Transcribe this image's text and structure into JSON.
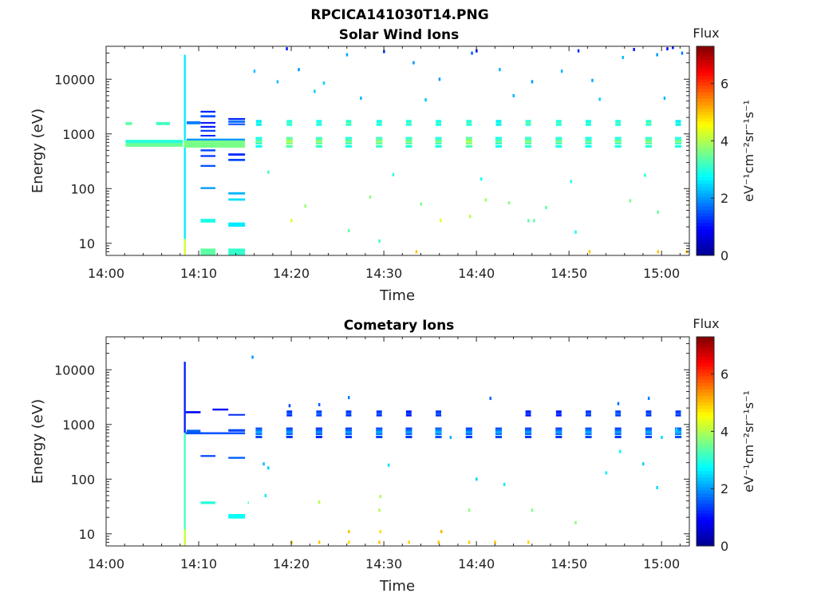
{
  "figure_title": "RPCICA141030T14.PNG",
  "colormap": [
    "#00008f",
    "#0000ff",
    "#0080ff",
    "#00ffff",
    "#80ff80",
    "#ffff00",
    "#ff8000",
    "#ff0000",
    "#800000"
  ],
  "chart_data": [
    {
      "type": "heatmap",
      "title": "Solar Wind Ions",
      "xlabel": "Time",
      "ylabel": "Energy (eV)",
      "xlim_minutes": [
        0,
        63
      ],
      "ylim": [
        6,
        40000
      ],
      "yscale": "log",
      "x_ticks": [
        {
          "m": 0,
          "label": "14:00"
        },
        {
          "m": 10,
          "label": "14:10"
        },
        {
          "m": 20,
          "label": "14:20"
        },
        {
          "m": 30,
          "label": "14:30"
        },
        {
          "m": 40,
          "label": "14:40"
        },
        {
          "m": 50,
          "label": "14:50"
        },
        {
          "m": 60,
          "label": "15:00"
        }
      ],
      "y_ticks": [
        {
          "v": 10,
          "label": "10"
        },
        {
          "v": 100,
          "label": "100"
        },
        {
          "v": 1000,
          "label": "1000"
        },
        {
          "v": 10000,
          "label": "10000"
        }
      ],
      "colorbar": {
        "label": "Flux",
        "unit": "eV⁻¹cm⁻²sr⁻¹s⁻¹",
        "range": [
          0,
          7.3
        ],
        "ticks": [
          "0",
          "2",
          "4",
          "6"
        ]
      },
      "grid": false,
      "cells": [
        [
          2.1,
          2.8,
          1450,
          1650,
          3.4
        ],
        [
          5.4,
          6.9,
          1450,
          1650,
          3.2
        ],
        [
          2.1,
          8.3,
          580,
          680,
          3.5
        ],
        [
          2.1,
          8.3,
          680,
          780,
          3.0
        ],
        [
          8.4,
          8.6,
          7,
          28000,
          2.6
        ],
        [
          8.4,
          8.6,
          6,
          12,
          4.3
        ],
        [
          8.4,
          15.0,
          560,
          760,
          3.6
        ],
        [
          8.7,
          15.0,
          760,
          820,
          2.0
        ],
        [
          10.2,
          11.8,
          2450,
          2650,
          1.2
        ],
        [
          10.2,
          11.8,
          1550,
          1650,
          1.0
        ],
        [
          10.2,
          11.8,
          1300,
          1400,
          1.1
        ],
        [
          10.2,
          11.8,
          1100,
          1180,
          1.3
        ],
        [
          10.2,
          11.8,
          900,
          960,
          1.2
        ],
        [
          10.2,
          11.8,
          480,
          520,
          1.4
        ],
        [
          10.2,
          11.8,
          380,
          410,
          1.3
        ],
        [
          10.2,
          11.8,
          250,
          270,
          1.5
        ],
        [
          10.2,
          11.8,
          98,
          106,
          2.0
        ],
        [
          10.2,
          11.8,
          24,
          28,
          2.9
        ],
        [
          10.2,
          11.8,
          6,
          8,
          3.4
        ],
        [
          10.2,
          11.8,
          2000,
          2200,
          1.5
        ],
        [
          8.7,
          10.2,
          1500,
          1700,
          1.8
        ],
        [
          13.2,
          15.0,
          1800,
          1950,
          1.2
        ],
        [
          13.2,
          15.0,
          1600,
          1750,
          1.7
        ],
        [
          13.2,
          15.0,
          1450,
          1550,
          1.4
        ],
        [
          13.2,
          15.0,
          400,
          440,
          1.2
        ],
        [
          13.2,
          15.0,
          320,
          350,
          1.4
        ],
        [
          13.2,
          15.0,
          78,
          86,
          2.2
        ],
        [
          13.2,
          15.0,
          60,
          66,
          2.5
        ],
        [
          13.2,
          15.0,
          20,
          24,
          2.6
        ],
        [
          13.2,
          15.0,
          6,
          8,
          3.1
        ]
      ],
      "bursts": [
        {
          "t": 16.5,
          "lo_level": 3.5,
          "hi_level": 3.0
        },
        {
          "t": 19.8,
          "lo_level": 4.0,
          "hi_level": 3.3
        },
        {
          "t": 23.0,
          "lo_level": 3.8,
          "hi_level": 3.2
        },
        {
          "t": 26.2,
          "lo_level": 3.6,
          "hi_level": 3.4
        },
        {
          "t": 29.5,
          "lo_level": 3.8,
          "hi_level": 3.2
        },
        {
          "t": 32.7,
          "lo_level": 3.7,
          "hi_level": 3.3
        },
        {
          "t": 35.9,
          "lo_level": 3.6,
          "hi_level": 3.2
        },
        {
          "t": 39.2,
          "lo_level": 4.0,
          "hi_level": 3.3
        },
        {
          "t": 42.4,
          "lo_level": 3.5,
          "hi_level": 3.0
        },
        {
          "t": 45.6,
          "lo_level": 3.7,
          "hi_level": 3.4
        },
        {
          "t": 48.9,
          "lo_level": 3.6,
          "hi_level": 3.3
        },
        {
          "t": 52.1,
          "lo_level": 3.5,
          "hi_level": 3.2
        },
        {
          "t": 55.3,
          "lo_level": 3.6,
          "hi_level": 3.3
        },
        {
          "t": 58.6,
          "lo_level": 3.7,
          "hi_level": 3.4
        },
        {
          "t": 61.8,
          "lo_level": 3.6,
          "hi_level": 3.0
        }
      ],
      "sparse_points": [
        [
          20.0,
          26,
          4.3
        ],
        [
          26.2,
          17,
          3.4
        ],
        [
          29.5,
          11,
          3.2
        ],
        [
          33.5,
          7,
          5.0
        ],
        [
          36.1,
          26,
          4.4
        ],
        [
          39.3,
          31,
          4.0
        ],
        [
          45.6,
          26,
          3.4
        ],
        [
          46.2,
          26,
          3.3
        ],
        [
          50.7,
          16,
          2.8
        ],
        [
          52.2,
          7,
          5.0
        ],
        [
          59.6,
          37,
          3.4
        ],
        [
          59.6,
          7,
          5.0
        ],
        [
          62.7,
          7,
          5.0
        ],
        [
          21.5,
          48,
          3.8
        ],
        [
          28.5,
          70,
          3.7
        ],
        [
          34.0,
          52,
          3.6
        ],
        [
          41.0,
          62,
          3.8
        ],
        [
          43.5,
          55,
          3.7
        ],
        [
          47.5,
          45,
          3.4
        ],
        [
          56.6,
          60,
          3.6
        ],
        [
          17.5,
          200,
          3.2
        ],
        [
          31.0,
          180,
          3.0
        ],
        [
          40.5,
          150,
          2.8
        ],
        [
          50.2,
          135,
          2.9
        ],
        [
          58.2,
          175,
          3.0
        ],
        [
          20.8,
          15000,
          2.0
        ],
        [
          23.5,
          8500,
          2.4
        ],
        [
          26.0,
          28000,
          2.1
        ],
        [
          33.2,
          20000,
          2.0
        ],
        [
          36.0,
          10000,
          2.0
        ],
        [
          39.5,
          30000,
          1.6
        ],
        [
          42.5,
          15000,
          2.2
        ],
        [
          46.0,
          9000,
          2.0
        ],
        [
          49.2,
          14000,
          2.2
        ],
        [
          52.5,
          9500,
          2.1
        ],
        [
          55.8,
          25000,
          2.3
        ],
        [
          59.5,
          28000,
          2.0
        ],
        [
          62.2,
          30000,
          1.8
        ],
        [
          30.0,
          32000,
          1.2
        ],
        [
          40.0,
          33000,
          1.0
        ],
        [
          51.0,
          33000,
          1.2
        ],
        [
          57.0,
          35000,
          1.0
        ],
        [
          60.6,
          36000,
          1.0
        ],
        [
          61.2,
          38000,
          1.0
        ],
        [
          19.5,
          36000,
          1.1
        ],
        [
          16.0,
          14000,
          2.3
        ],
        [
          18.5,
          9000,
          2.3
        ],
        [
          22.5,
          6000,
          2.4
        ],
        [
          27.5,
          4500,
          2.2
        ],
        [
          34.5,
          4200,
          2.3
        ],
        [
          44.0,
          5000,
          2.2
        ],
        [
          53.3,
          4300,
          2.4
        ],
        [
          60.3,
          4500,
          2.2
        ]
      ]
    },
    {
      "type": "heatmap",
      "title": "Cometary Ions",
      "xlabel": "Time",
      "ylabel": "Energy (eV)",
      "xlim_minutes": [
        0,
        63
      ],
      "ylim": [
        6,
        40000
      ],
      "yscale": "log",
      "x_ticks": [
        {
          "m": 0,
          "label": "14:00"
        },
        {
          "m": 10,
          "label": "14:10"
        },
        {
          "m": 20,
          "label": "14:20"
        },
        {
          "m": 30,
          "label": "14:30"
        },
        {
          "m": 40,
          "label": "14:40"
        },
        {
          "m": 50,
          "label": "14:50"
        },
        {
          "m": 60,
          "label": "15:00"
        }
      ],
      "y_ticks": [
        {
          "v": 10,
          "label": "10"
        },
        {
          "v": 100,
          "label": "100"
        },
        {
          "v": 1000,
          "label": "1000"
        },
        {
          "v": 10000,
          "label": "10000"
        }
      ],
      "colorbar": {
        "label": "Flux",
        "unit": "eV⁻¹cm⁻²sr⁻¹s⁻¹",
        "range": [
          0,
          7.3
        ],
        "ticks": [
          "0",
          "2",
          "4",
          "6"
        ]
      },
      "grid": false,
      "cells": [
        [
          8.4,
          8.6,
          700,
          14000,
          1.1
        ],
        [
          8.4,
          8.6,
          6,
          700,
          3.2
        ],
        [
          8.4,
          8.6,
          6,
          12,
          4.2
        ],
        [
          8.6,
          10.2,
          1600,
          1750,
          1.0
        ],
        [
          8.6,
          15.0,
          660,
          720,
          1.5
        ],
        [
          8.7,
          10.2,
          720,
          800,
          1.6
        ],
        [
          11.5,
          13.2,
          1800,
          1950,
          1.0
        ],
        [
          13.2,
          15.0,
          1450,
          1550,
          1.2
        ],
        [
          13.2,
          15.0,
          740,
          820,
          1.4
        ],
        [
          10.2,
          11.8,
          255,
          275,
          1.4
        ],
        [
          13.2,
          15.0,
          235,
          255,
          1.6
        ],
        [
          10.2,
          11.8,
          35,
          39,
          3.0
        ],
        [
          13.2,
          15.0,
          19,
          23,
          2.8
        ],
        [
          15.3,
          15.4,
          35,
          39,
          3.3
        ]
      ],
      "bursts": [
        {
          "t": 16.5,
          "lo_level": 2.1,
          "hi_level": 0
        },
        {
          "t": 19.8,
          "lo_level": 2.0,
          "hi_level": 1.6
        },
        {
          "t": 23.0,
          "lo_level": 1.9,
          "hi_level": 1.7
        },
        {
          "t": 26.2,
          "lo_level": 2.0,
          "hi_level": 1.6
        },
        {
          "t": 29.5,
          "lo_level": 2.1,
          "hi_level": 1.6
        },
        {
          "t": 32.7,
          "lo_level": 2.0,
          "hi_level": 1.4
        },
        {
          "t": 35.9,
          "lo_level": 2.2,
          "hi_level": 1.6
        },
        {
          "t": 39.2,
          "lo_level": 2.0,
          "hi_level": 0
        },
        {
          "t": 42.4,
          "lo_level": 2.1,
          "hi_level": 0
        },
        {
          "t": 45.6,
          "lo_level": 2.0,
          "hi_level": 1.4
        },
        {
          "t": 48.9,
          "lo_level": 2.0,
          "hi_level": 1.4
        },
        {
          "t": 52.1,
          "lo_level": 2.1,
          "hi_level": 1.6
        },
        {
          "t": 55.3,
          "lo_level": 2.0,
          "hi_level": 1.7
        },
        {
          "t": 58.6,
          "lo_level": 2.1,
          "hi_level": 1.6
        },
        {
          "t": 61.8,
          "lo_level": 2.2,
          "hi_level": 1.6
        }
      ],
      "sparse_points": [
        [
          20.0,
          7,
          5.0
        ],
        [
          23.0,
          7,
          5.0
        ],
        [
          26.2,
          7,
          4.8
        ],
        [
          26.2,
          11,
          5.0
        ],
        [
          29.5,
          7,
          5.0
        ],
        [
          29.6,
          11,
          4.8
        ],
        [
          32.7,
          7,
          4.9
        ],
        [
          35.9,
          7,
          5.0
        ],
        [
          36.2,
          11,
          5.1
        ],
        [
          39.2,
          7,
          4.9
        ],
        [
          42.0,
          7,
          5.0
        ],
        [
          45.6,
          7,
          4.9
        ],
        [
          50.7,
          16,
          3.7
        ],
        [
          23.0,
          38,
          4.0
        ],
        [
          29.5,
          27,
          4.0
        ],
        [
          29.6,
          48,
          4.0
        ],
        [
          39.2,
          27,
          3.7
        ],
        [
          46.0,
          27,
          3.6
        ],
        [
          17.2,
          50,
          2.6
        ],
        [
          17.5,
          160,
          2.4
        ],
        [
          17.0,
          190,
          2.3
        ],
        [
          30.5,
          180,
          2.5
        ],
        [
          40.0,
          100,
          2.4
        ],
        [
          43.0,
          80,
          2.6
        ],
        [
          54.0,
          130,
          2.6
        ],
        [
          58.0,
          190,
          2.4
        ],
        [
          59.5,
          70,
          2.5
        ],
        [
          55.5,
          320,
          2.7
        ],
        [
          60.0,
          580,
          2.5
        ],
        [
          15.8,
          17000,
          2.0
        ],
        [
          19.8,
          2200,
          1.4
        ],
        [
          23.0,
          2300,
          1.6
        ],
        [
          26.2,
          3100,
          1.8
        ],
        [
          55.3,
          2400,
          1.7
        ],
        [
          58.6,
          3000,
          1.8
        ],
        [
          41.5,
          3000,
          1.6
        ],
        [
          37.2,
          580,
          2.2
        ],
        [
          61.6,
          800,
          2.5
        ]
      ]
    }
  ]
}
